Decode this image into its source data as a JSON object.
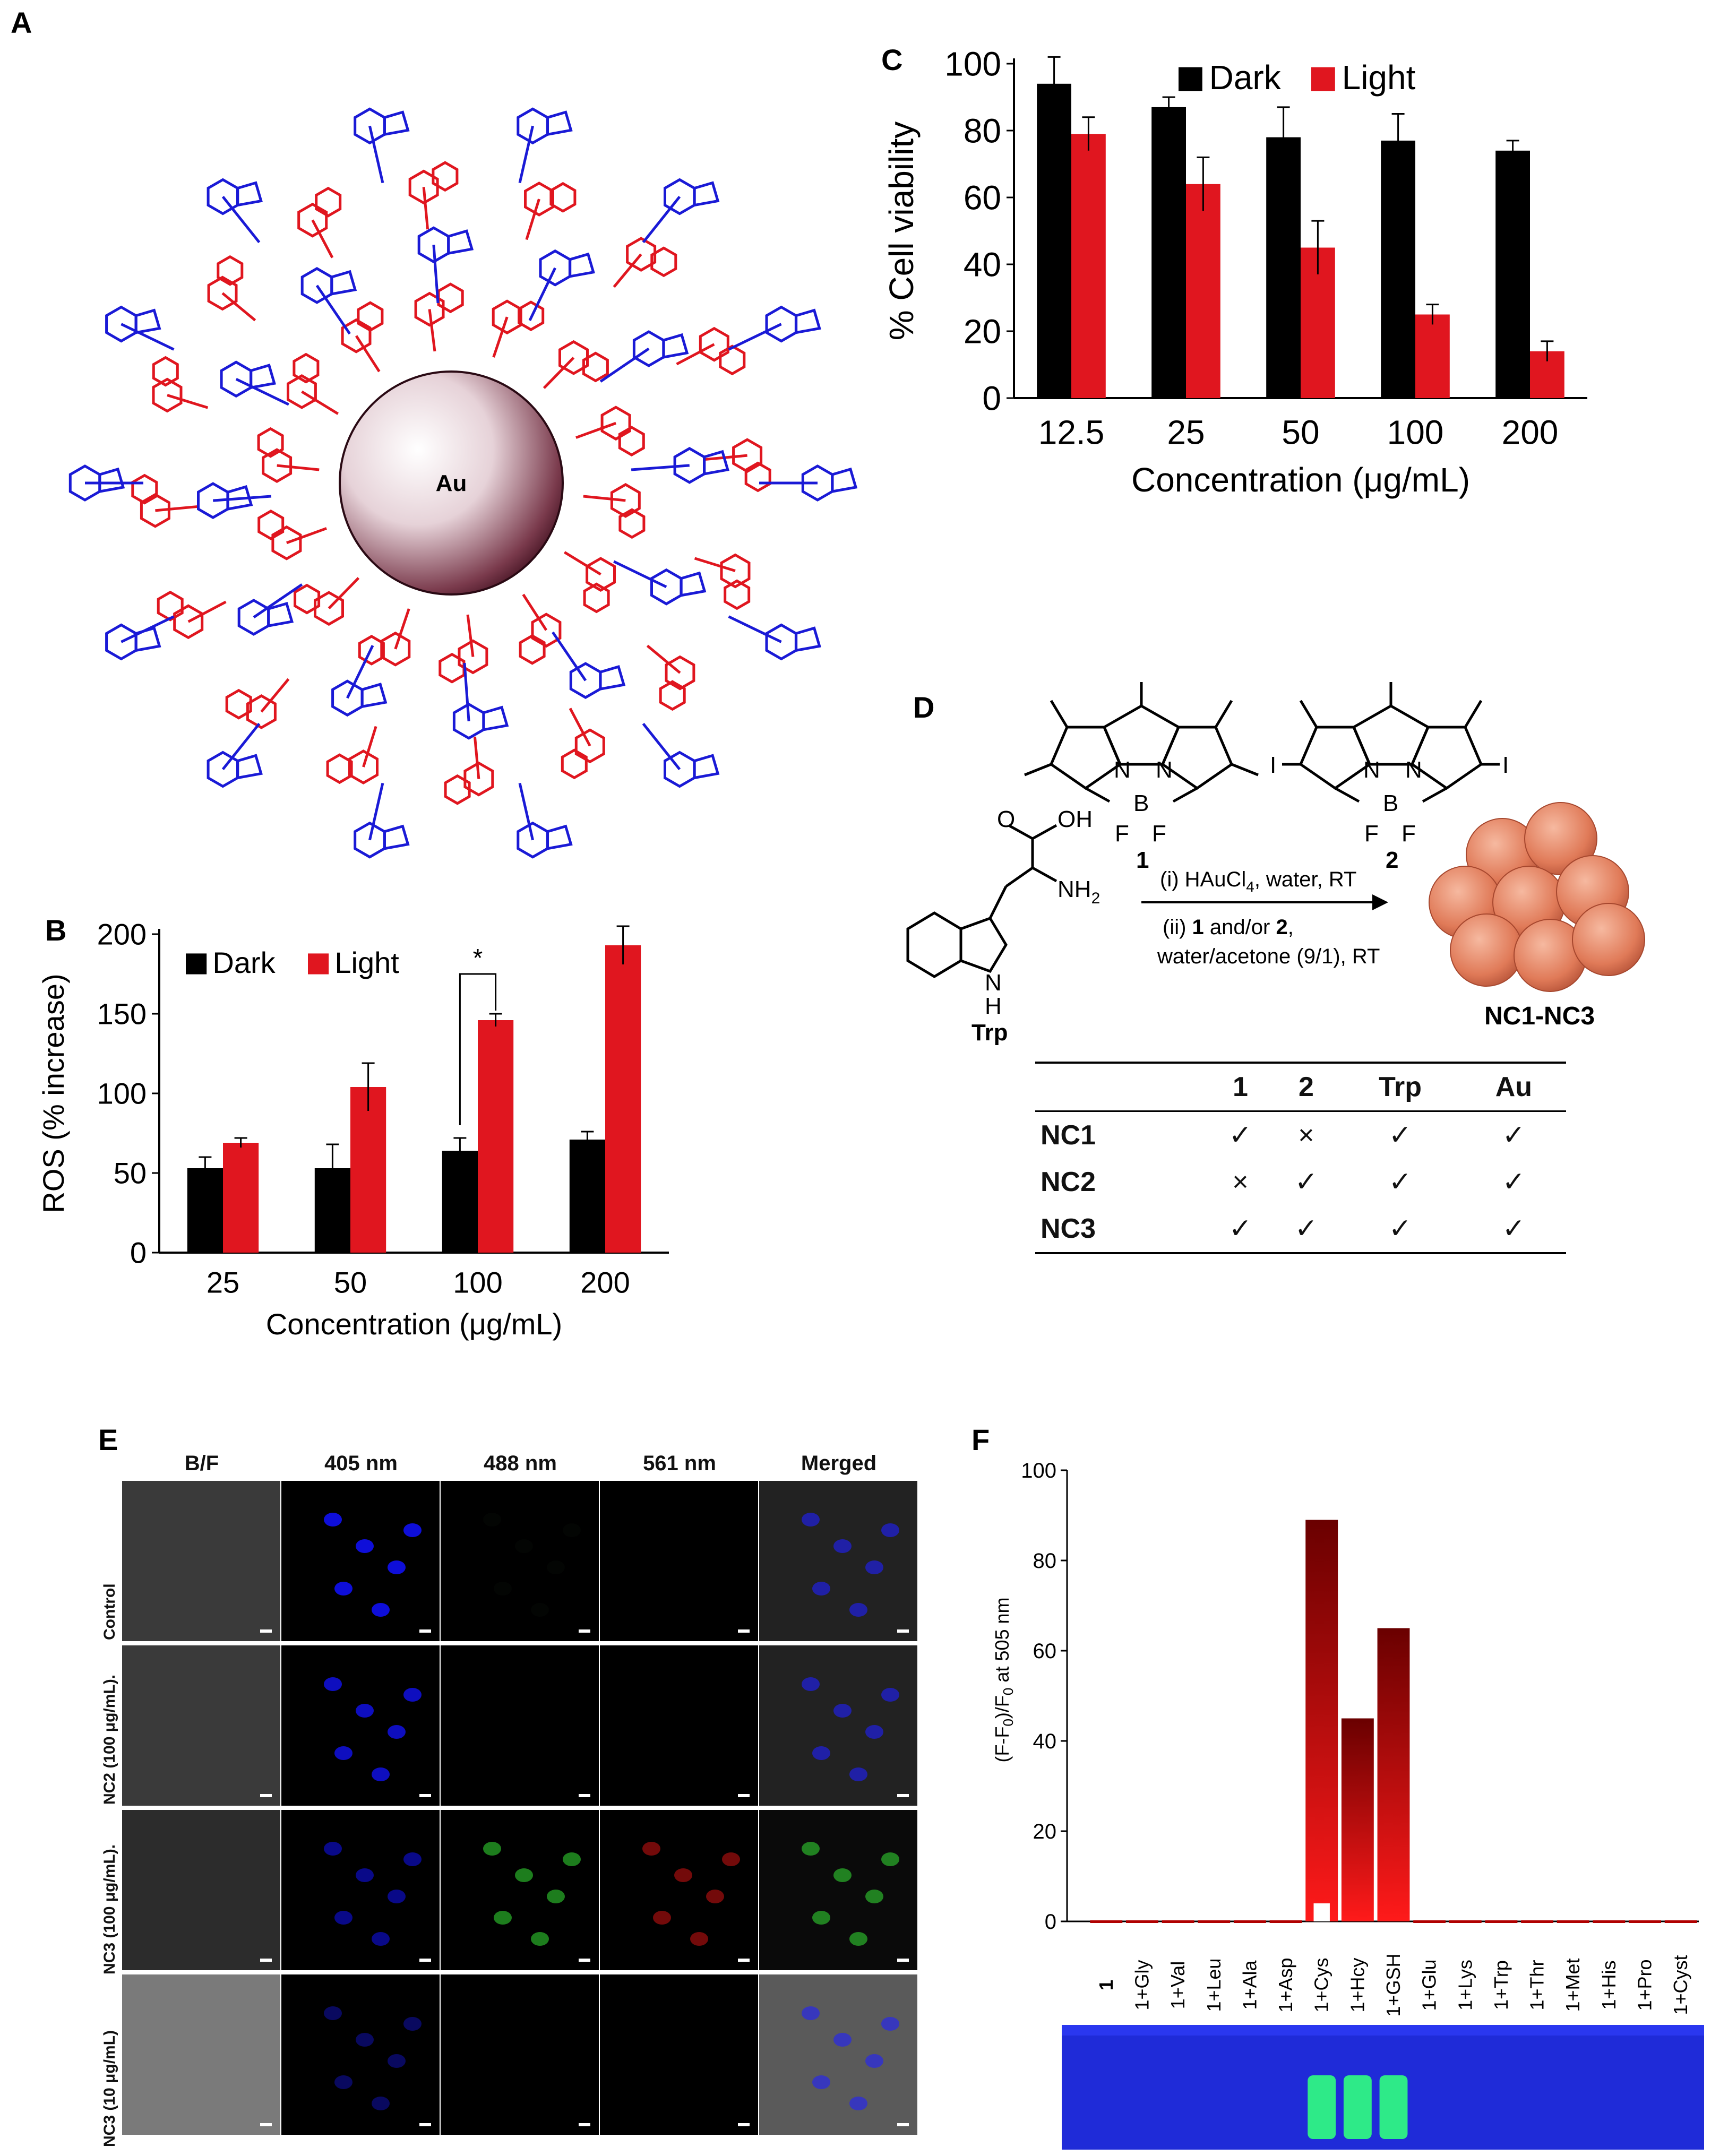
{
  "panel_labels": {
    "a": "A",
    "b": "B",
    "c": "C",
    "d": "D",
    "e": "E",
    "f": "F"
  },
  "panel_a": {
    "core_label": "Au",
    "colors": {
      "bodipy": "#e0161f",
      "trp": "#1a1ad6",
      "core": "#6a2a3e"
    }
  },
  "panel_d": {
    "compound1_label": "1",
    "compound2_label": "2",
    "trp_label": "Trp",
    "oh_label": "OH",
    "nh2_label": "NH",
    "nh2_sub": "2",
    "h_label": "H",
    "n_label": "N",
    "b_label": "B",
    "f_label": "F",
    "i_label": "I",
    "o_label": "O",
    "step1_prefix": "(i) HAuCl",
    "step1_sub": "4",
    "step1_suffix": ", water, RT",
    "step2_line1_prefix": "(ii) ",
    "step2_line1_b1": "1",
    "step2_line1_mid": " and/or ",
    "step2_line1_b2": "2",
    "step2_line1_suffix": ",",
    "step2_line2": "water/acetone (9/1), RT",
    "product_label": "NC1-NC3",
    "table": {
      "headers": [
        "",
        "1",
        "2",
        "Trp",
        "Au"
      ],
      "rows": [
        [
          "NC1",
          "✓",
          "×",
          "✓",
          "✓"
        ],
        [
          "NC2",
          "×",
          "✓",
          "✓",
          "✓"
        ],
        [
          "NC3",
          "✓",
          "✓",
          "✓",
          "✓"
        ]
      ]
    }
  },
  "panel_e": {
    "columns": [
      "B/F",
      "405 nm",
      "488 nm",
      "561 nm",
      "Merged"
    ],
    "rows": [
      "Control",
      "NC2 (100 μg/mL).",
      "NC3 (100 μg/mL).",
      "NC3 (10 μg/mL)"
    ]
  },
  "chart_data": [
    {
      "id": "B",
      "type": "bar",
      "categories": [
        "25",
        "50",
        "100",
        "200"
      ],
      "series": [
        {
          "name": "Dark",
          "color": "#000000",
          "values": [
            53,
            53,
            64,
            71
          ],
          "errors": [
            7,
            15,
            8,
            5
          ]
        },
        {
          "name": "Light",
          "color": "#e0161f",
          "values": [
            69,
            104,
            146,
            193
          ],
          "errors": [
            3,
            15,
            4,
            12
          ]
        }
      ],
      "xlabel": "Concentration (μg/mL)",
      "ylabel": "ROS (% increase)",
      "ylim": [
        0,
        200
      ],
      "yticks": [
        "0",
        "50",
        "100",
        "150",
        "200"
      ],
      "annotation": "*",
      "legend": "top-left",
      "grid": false
    },
    {
      "id": "C",
      "type": "bar",
      "categories": [
        "12.5",
        "25",
        "50",
        "100",
        "200"
      ],
      "series": [
        {
          "name": "Dark",
          "color": "#000000",
          "values": [
            94,
            87,
            78,
            77,
            74
          ],
          "errors": [
            8,
            3,
            9,
            8,
            3
          ]
        },
        {
          "name": "Light",
          "color": "#e0161f",
          "values": [
            79,
            64,
            45,
            25,
            14
          ],
          "errors": [
            5,
            8,
            8,
            3,
            3
          ]
        }
      ],
      "xlabel": "Concentration (μg/mL)",
      "ylabel": "% Cell viability",
      "ylim": [
        0,
        100
      ],
      "yticks": [
        "0",
        "20",
        "40",
        "60",
        "80",
        "100"
      ],
      "legend": "top",
      "grid": false
    },
    {
      "id": "F",
      "type": "bar",
      "categories": [
        "1",
        "1+Gly",
        "1+Val",
        "1+Leu",
        "1+Ala",
        "1+Asp",
        "1+Cys",
        "1+Hcy",
        "1+GSH",
        "1+Glu",
        "1+Lys",
        "1+Trp",
        "1+Thr",
        "1+Met",
        "1+His",
        "1+Pro",
        "1+Cyst"
      ],
      "values": [
        0,
        0,
        0,
        0,
        0,
        0,
        89,
        45,
        65,
        0,
        0,
        0,
        0,
        0,
        0,
        0,
        0
      ],
      "ylabel_main": "(F-F",
      "ylabel_sub": "0",
      "ylabel_mid": ")/F",
      "ylabel_sub2": "0",
      "ylabel_tail": " at 505 nm",
      "ylim": [
        0,
        100
      ],
      "yticks": [
        "0",
        "20",
        "40",
        "60",
        "80",
        "100"
      ],
      "grid": false
    }
  ]
}
